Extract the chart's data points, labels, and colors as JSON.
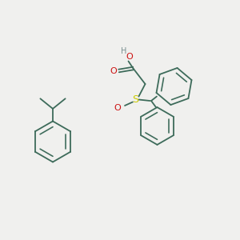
{
  "background_color": "#f0f0ee",
  "bond_color": "#3d6b5a",
  "atom_colors": {
    "H": "#7a9090",
    "O": "#cc1111",
    "S": "#cccc00",
    "C": "#3d6b5a"
  },
  "figsize": [
    3.0,
    3.0
  ],
  "dpi": 100
}
